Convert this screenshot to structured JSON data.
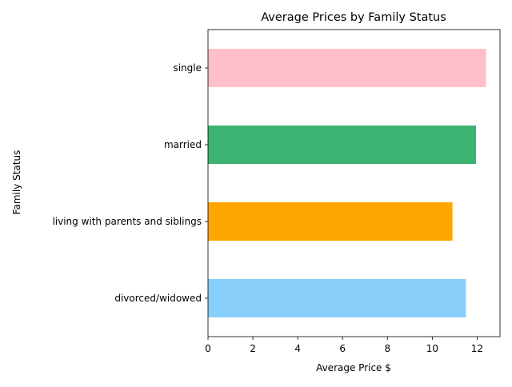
{
  "chart_data": {
    "type": "bar",
    "orientation": "horizontal",
    "title": "Average Prices by Family Status",
    "xlabel": "Average Price $",
    "ylabel": "Family Status",
    "categories": [
      "divorced/widowed",
      "living with parents and siblings",
      "married",
      "single"
    ],
    "values": [
      11.5,
      10.9,
      11.95,
      12.4
    ],
    "colors": [
      "#87CEFA",
      "#FFA500",
      "#3CB371",
      "#FFC0CB"
    ],
    "xlim": [
      0,
      13.02
    ],
    "xticks": [
      0,
      2,
      4,
      6,
      8,
      10,
      12
    ],
    "grid": false,
    "legend": false
  }
}
